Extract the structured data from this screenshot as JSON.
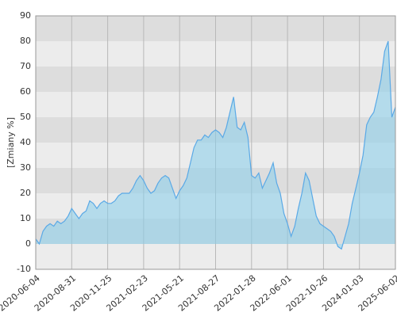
{
  "chart_data": {
    "type": "area",
    "y_label": "[Zmiany %]",
    "values": [
      2,
      0,
      5,
      7,
      8,
      7,
      9,
      8,
      9,
      11,
      14,
      12,
      10,
      12,
      13,
      17,
      16,
      14,
      16,
      17,
      16,
      16,
      17,
      19,
      20,
      20,
      20,
      22,
      25,
      27,
      25,
      22,
      20,
      21,
      24,
      26,
      27,
      26,
      22,
      18,
      21,
      23,
      26,
      32,
      38,
      41,
      41,
      43,
      42,
      44,
      45,
      44,
      42,
      46,
      52,
      58,
      46,
      45,
      48,
      42,
      27,
      26,
      28,
      22,
      25,
      28,
      32,
      24,
      20,
      12,
      8,
      3,
      7,
      14,
      20,
      28,
      25,
      18,
      11,
      8,
      7,
      6,
      5,
      3,
      -1,
      -2,
      3,
      8,
      16,
      22,
      28,
      35,
      47,
      50,
      52,
      58,
      65,
      76,
      80,
      50,
      54
    ],
    "color": "#5aa9e6",
    "xlim": [
      0,
      100
    ],
    "xticks": [
      {
        "value": 0,
        "label": "2020-06-04"
      },
      {
        "value": 10,
        "label": "2020-08-31"
      },
      {
        "value": 20,
        "label": "2020-11-25"
      },
      {
        "value": 30,
        "label": "2021-02-23"
      },
      {
        "value": 40,
        "label": "2021-05-21"
      },
      {
        "value": 50,
        "label": "2021-08-27"
      },
      {
        "value": 60,
        "label": "2022-01-28"
      },
      {
        "value": 70,
        "label": "2022-06-01"
      },
      {
        "value": 80,
        "label": "2022-10-26"
      },
      {
        "value": 90,
        "label": "2024-01-03"
      },
      {
        "value": 100,
        "label": "2025-06-02"
      }
    ],
    "ylim": [
      -10,
      90
    ],
    "yticks": [
      -10,
      0,
      10,
      20,
      30,
      40,
      50,
      60,
      70,
      80,
      90
    ],
    "grid": true
  }
}
